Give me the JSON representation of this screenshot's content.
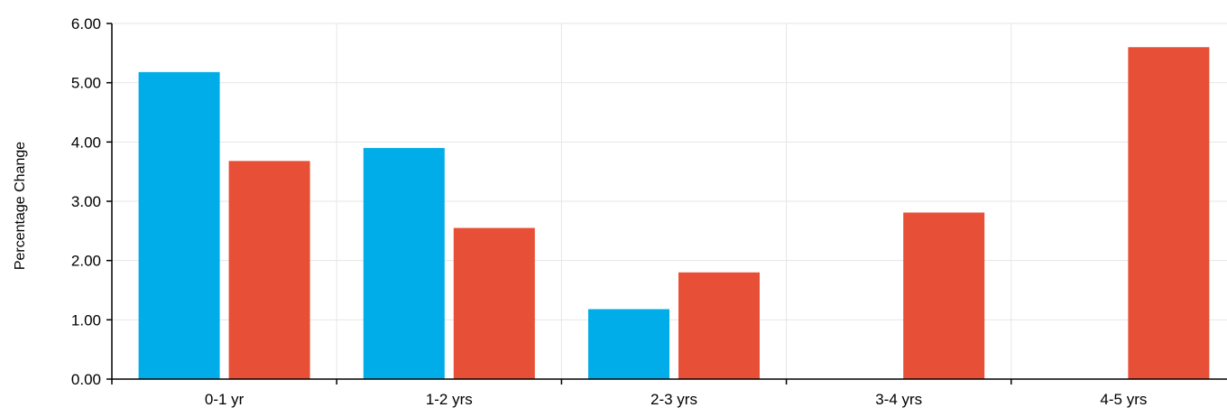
{
  "chart_data": {
    "type": "bar",
    "title": "",
    "xlabel": "",
    "ylabel": "Percentage Change",
    "categories": [
      "0-1 yr",
      "1-2 yrs",
      "2-3 yrs",
      "3-4 yrs",
      "4-5 yrs"
    ],
    "series": [
      {
        "color": "#00ade8",
        "values": [
          5.18,
          3.9,
          1.18,
          null,
          null
        ]
      },
      {
        "color": "#e84f37",
        "values": [
          3.68,
          2.55,
          1.8,
          2.81,
          5.6
        ]
      }
    ],
    "ylim": [
      0,
      6
    ],
    "yticks": [
      0,
      1,
      2,
      3,
      4,
      5,
      6
    ],
    "ytick_labels": [
      "0.00",
      "1.00",
      "2.00",
      "3.00",
      "4.00",
      "5.00",
      "6.00"
    ],
    "grid": true,
    "legend": "none"
  }
}
